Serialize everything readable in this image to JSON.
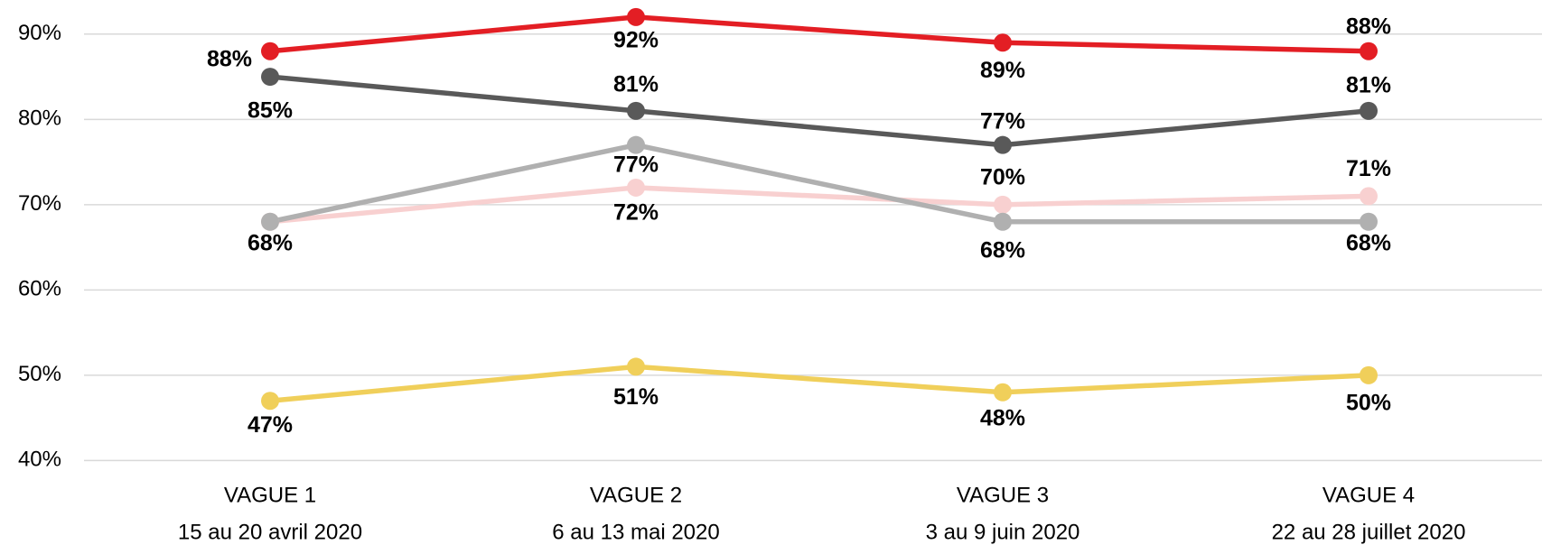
{
  "chart_data": {
    "type": "line",
    "categories": [
      [
        "VAGUE 1",
        "15 au 20 avril 2020"
      ],
      [
        "VAGUE 2",
        "6 au 13 mai 2020"
      ],
      [
        "VAGUE 3",
        "3 au 9 juin 2020"
      ],
      [
        "VAGUE 4",
        "22 au 28 juillet 2020"
      ]
    ],
    "series": [
      {
        "color": "#e31e24",
        "values": [
          88,
          92,
          89,
          88
        ],
        "value_labels": [
          "88%",
          "92%",
          "89%",
          "88%"
        ]
      },
      {
        "color": "#595959",
        "values": [
          85,
          81,
          77,
          81
        ],
        "value_labels": [
          "85%",
          "81%",
          "77%",
          "81%"
        ]
      },
      {
        "color": "#f8d0d0",
        "values": [
          68,
          72,
          70,
          71
        ],
        "value_labels": [
          null,
          "72%",
          "70%",
          "71%"
        ]
      },
      {
        "color": "#b0b0b0",
        "values": [
          68,
          77,
          68,
          68
        ],
        "value_labels": [
          "68%",
          "77%",
          "68%",
          "68%"
        ]
      },
      {
        "color": "#f0cf5a",
        "values": [
          47,
          51,
          48,
          50
        ],
        "value_labels": [
          "47%",
          "51%",
          "48%",
          "50%"
        ]
      }
    ],
    "ylim": [
      40,
      94
    ],
    "yticks": [
      {
        "value": 40,
        "label": "40%"
      },
      {
        "value": 50,
        "label": "50%"
      },
      {
        "value": 60,
        "label": "60%"
      },
      {
        "value": 70,
        "label": "70%"
      },
      {
        "value": 80,
        "label": "80%"
      },
      {
        "value": 90,
        "label": "90%"
      }
    ],
    "grid": true
  }
}
